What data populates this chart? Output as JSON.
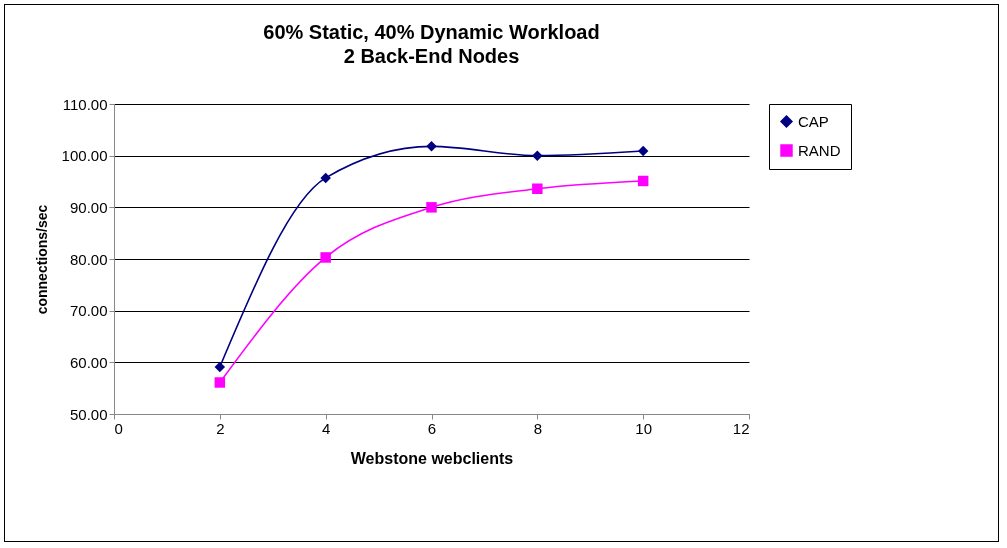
{
  "chart_data": {
    "type": "line",
    "title": "60% Static, 40% Dynamic Workload",
    "subtitle": "2 Back-End Nodes",
    "xlabel": "Webstone webclients",
    "ylabel": "connections/sec",
    "x": [
      2,
      4,
      6,
      8,
      10
    ],
    "series": [
      {
        "name": "CAP",
        "color": "#000080",
        "values": [
          59.1,
          95.7,
          101.8,
          100,
          100.9
        ],
        "marker": "diamond"
      },
      {
        "name": "RAND",
        "color": "#ff00ff",
        "values": [
          56.1,
          80.3,
          90,
          93.6,
          95.1
        ],
        "marker": "square"
      }
    ],
    "xlim": [
      0,
      12
    ],
    "xticks": [
      0,
      2,
      4,
      6,
      8,
      10,
      12
    ],
    "ylim": [
      50,
      110
    ],
    "yticks": [
      {
        "value": 50,
        "label": "50.00"
      },
      {
        "value": 60,
        "label": "60.00"
      },
      {
        "value": 70,
        "label": "70.00"
      },
      {
        "value": 80,
        "label": "80.00"
      },
      {
        "value": 90,
        "label": "90.00"
      },
      {
        "value": 100,
        "label": "100.00"
      },
      {
        "value": 110,
        "label": "110.00"
      }
    ],
    "grid": "y",
    "legend": "right"
  }
}
